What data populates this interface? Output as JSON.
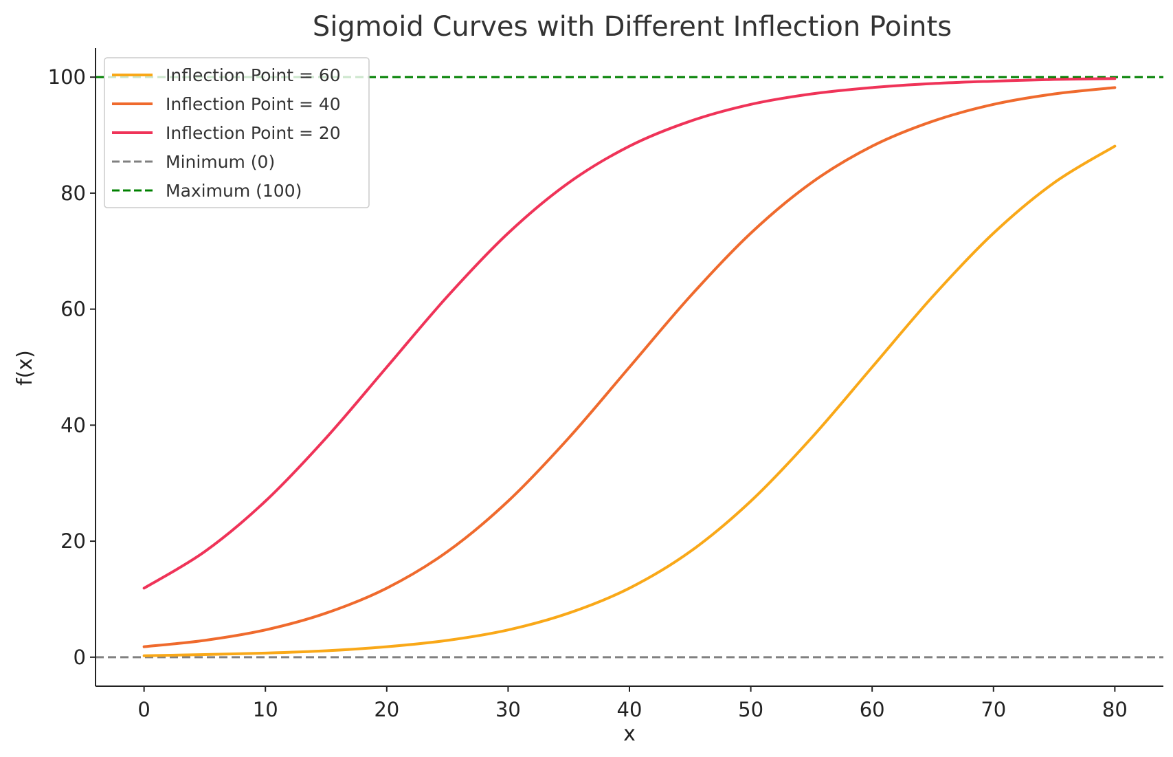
{
  "chart_data": {
    "type": "line",
    "title": "Sigmoid Curves with Different Inflection Points",
    "xlabel": "x",
    "ylabel": "f(x)",
    "xlim": [
      -4,
      84
    ],
    "ylim": [
      -5,
      105
    ],
    "xticks": [
      0,
      10,
      20,
      30,
      40,
      50,
      60,
      70,
      80
    ],
    "yticks": [
      0,
      20,
      40,
      60,
      80,
      100
    ],
    "grid": false,
    "legend_position": "top-left",
    "x": [
      0,
      5,
      10,
      15,
      20,
      25,
      30,
      35,
      40,
      45,
      50,
      55,
      60,
      65,
      70,
      75,
      80
    ],
    "series": [
      {
        "name": "Inflection Point = 60",
        "color": "#f9a818",
        "style": "solid",
        "values": [
          0.25,
          0.45,
          0.7,
          1.1,
          1.8,
          2.9,
          4.7,
          7.6,
          11.9,
          18.2,
          26.9,
          37.8,
          50.0,
          62.2,
          73.1,
          81.8,
          88.1
        ]
      },
      {
        "name": "Inflection Point = 40",
        "color": "#ef6a2d",
        "style": "solid",
        "values": [
          1.8,
          2.9,
          4.7,
          7.6,
          11.9,
          18.2,
          26.9,
          37.8,
          50.0,
          62.2,
          73.1,
          81.8,
          88.1,
          92.4,
          95.3,
          97.1,
          98.2
        ]
      },
      {
        "name": "Inflection Point = 20",
        "color": "#ef3358",
        "style": "solid",
        "values": [
          11.9,
          18.2,
          26.9,
          37.8,
          50.0,
          62.2,
          73.1,
          81.8,
          88.1,
          92.4,
          95.3,
          97.1,
          98.2,
          98.9,
          99.3,
          99.6,
          99.75
        ]
      }
    ],
    "reference_lines": [
      {
        "name": "Minimum (0)",
        "y": 0,
        "color": "#808080",
        "style": "dashed"
      },
      {
        "name": "Maximum (100)",
        "y": 100,
        "color": "#008000",
        "style": "dashed"
      }
    ]
  }
}
